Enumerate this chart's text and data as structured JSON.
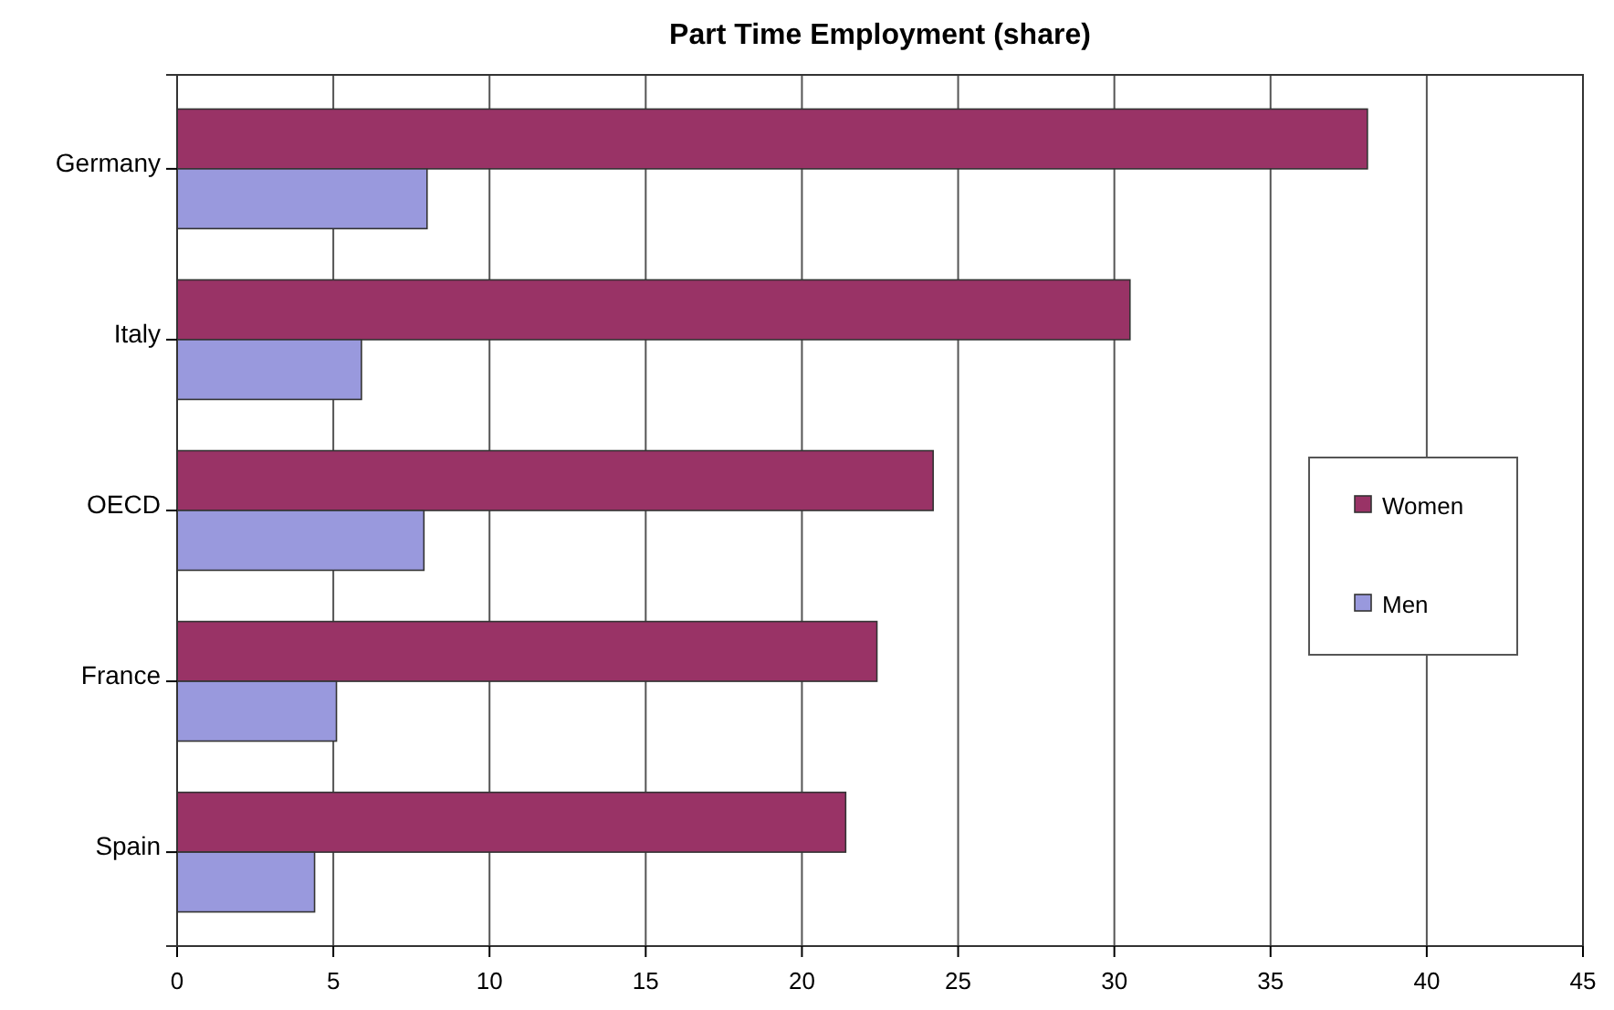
{
  "chart_data": {
    "type": "bar",
    "orientation": "horizontal",
    "title": "Part Time Employment (share)",
    "categories": [
      "Germany",
      "Italy",
      "OECD",
      "France",
      "Spain"
    ],
    "series": [
      {
        "name": "Women",
        "color": "#993366",
        "values": [
          38.1,
          30.5,
          24.2,
          22.4,
          21.4
        ]
      },
      {
        "name": "Men",
        "color": "#9999dd",
        "values": [
          8.0,
          5.9,
          7.9,
          5.1,
          4.4
        ]
      }
    ],
    "xlim": [
      0,
      45
    ],
    "xticks": [
      0,
      5,
      10,
      15,
      20,
      25,
      30,
      35,
      40,
      45
    ],
    "grid": "x",
    "legend": "right"
  }
}
